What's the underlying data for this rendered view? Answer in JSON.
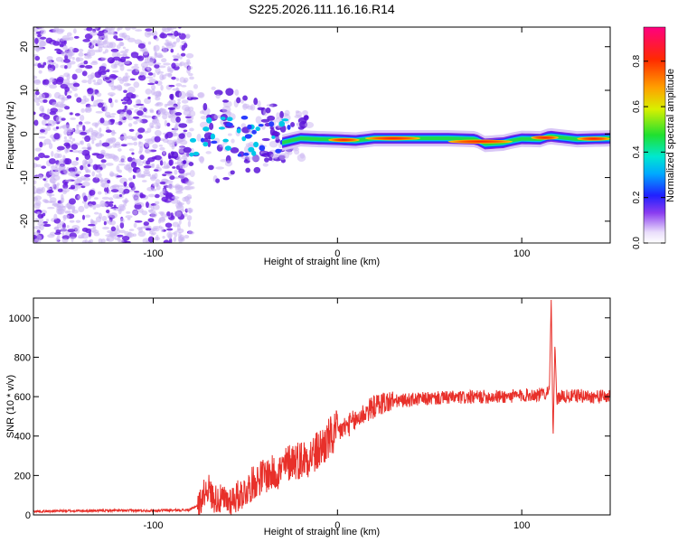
{
  "title": "S225.2026.111.16.16.R14",
  "colors": {
    "line": "#e8302a",
    "axis": "#000000",
    "lowAmp": "#c9b3f2",
    "midAmp": "#6a1ee0"
  },
  "chart_data": [
    {
      "type": "heatmap",
      "xlabel": "Height of straight line (km)",
      "ylabel": "Frequency (Hz)",
      "xlim": [
        -165,
        148
      ],
      "ylim": [
        -25,
        24.5
      ],
      "xticks": [
        -100,
        0,
        100
      ],
      "xtick_labels": [
        "-100",
        "0",
        "100"
      ],
      "yticks": [
        -20,
        -10,
        0,
        10,
        20
      ],
      "ytick_labels": [
        "-20",
        "-10",
        "0",
        "10",
        "20"
      ],
      "carrier_trace": {
        "x": [
          -30,
          -20,
          -10,
          0,
          10,
          20,
          40,
          60,
          75,
          80,
          90,
          95,
          100,
          110,
          115,
          130,
          148
        ],
        "y": [
          -2,
          -1,
          -1.2,
          -1.3,
          -1.5,
          -1,
          -1,
          -1,
          -1.2,
          -2.3,
          -2,
          -1.5,
          -1.1,
          -1.2,
          -0.5,
          -1.2,
          -1.0
        ]
      },
      "colorbar": {
        "label": "Normalized spectral amplitude",
        "range": [
          0.0,
          0.95
        ],
        "ticks": [
          0.0,
          0.2,
          0.4,
          0.6,
          0.8
        ],
        "tick_labels": [
          "0.0",
          "0.2",
          "0.4",
          "0.6",
          "0.8"
        ]
      }
    },
    {
      "type": "line",
      "xlabel": "Height of straight line (km)",
      "ylabel": "SNR (10 * v/v)",
      "xlim": [
        -165,
        148
      ],
      "ylim": [
        0,
        1100
      ],
      "xticks": [
        -100,
        0,
        100
      ],
      "xtick_labels": [
        "-100",
        "0",
        "100"
      ],
      "yticks": [
        0,
        200,
        400,
        600,
        800,
        1000
      ],
      "ytick_labels": [
        "0",
        "200",
        "400",
        "600",
        "800",
        "1000"
      ],
      "series": [
        {
          "name": "SNR",
          "x": [
            -165,
            -150,
            -120,
            -100,
            -80,
            -75,
            -72,
            -70,
            -68,
            -65,
            -60,
            -55,
            -50,
            -45,
            -40,
            -35,
            -30,
            -25,
            -20,
            -15,
            -12,
            -10,
            -5,
            0,
            5,
            10,
            15,
            20,
            25,
            30,
            40,
            50,
            60,
            70,
            80,
            90,
            100,
            105,
            110,
            113,
            115,
            116,
            117,
            118,
            119,
            120,
            125,
            130,
            140,
            148
          ],
          "y": [
            18,
            20,
            22,
            22,
            25,
            55,
            120,
            140,
            90,
            80,
            70,
            90,
            120,
            170,
            200,
            210,
            230,
            280,
            280,
            300,
            310,
            330,
            380,
            420,
            450,
            480,
            520,
            550,
            570,
            575,
            585,
            590,
            595,
            595,
            600,
            600,
            605,
            610,
            610,
            620,
            640,
            1100,
            380,
            870,
            580,
            600,
            600,
            605,
            600,
            600
          ]
        }
      ]
    }
  ]
}
